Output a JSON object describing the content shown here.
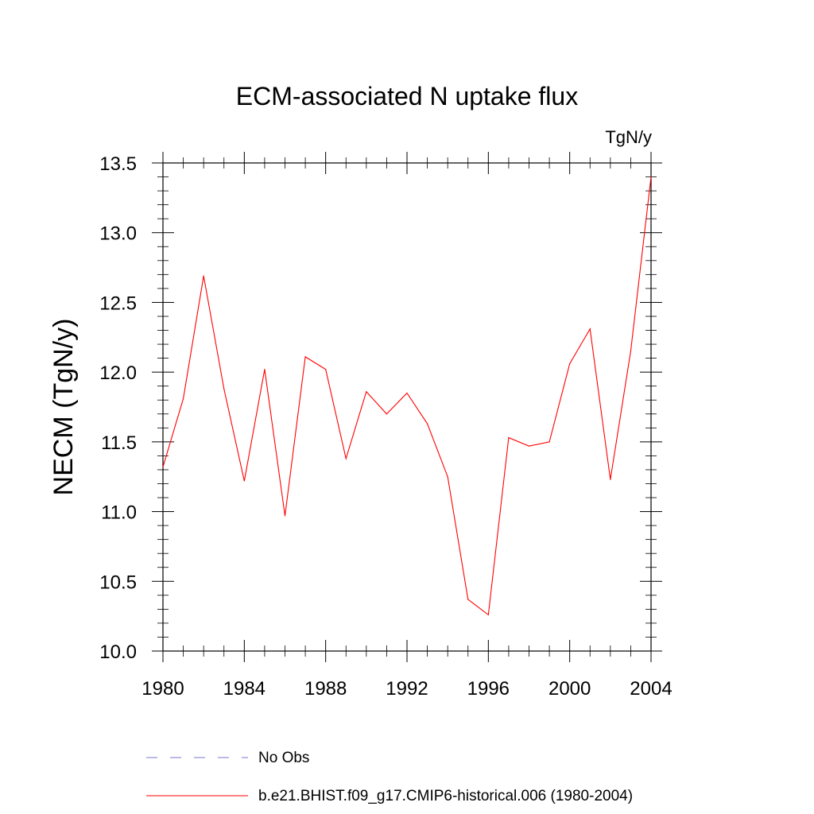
{
  "chart_data": {
    "type": "line",
    "title": "ECM-associated N uptake flux",
    "units_label": "TgN/y",
    "ylabel": "NECM  (TgN/y)",
    "xlabel": "",
    "xlim": [
      1980,
      2004
    ],
    "ylim": [
      10.0,
      13.5
    ],
    "x_ticks": [
      "1980",
      "1984",
      "1988",
      "1992",
      "1996",
      "2000",
      "2004"
    ],
    "y_ticks": [
      "10.0",
      "10.5",
      "11.0",
      "11.5",
      "12.0",
      "12.5",
      "13.0",
      "13.5"
    ],
    "grid": false,
    "legend_position": "bottom",
    "series": [
      {
        "name": "b.e21.BHIST.f09_g17.CMIP6-historical.006 (1980-2004)",
        "color": "#ff0000",
        "style": "solid",
        "x": [
          1980,
          1981,
          1982,
          1983,
          1984,
          1985,
          1986,
          1987,
          1988,
          1989,
          1990,
          1991,
          1992,
          1993,
          1994,
          1995,
          1996,
          1997,
          1998,
          1999,
          2000,
          2001,
          2002,
          2003,
          2004
        ],
        "values": [
          11.32,
          11.81,
          12.69,
          11.88,
          11.22,
          12.02,
          10.97,
          12.11,
          12.02,
          11.38,
          11.86,
          11.7,
          11.85,
          11.63,
          11.25,
          10.37,
          10.26,
          11.53,
          11.47,
          11.5,
          12.06,
          12.31,
          11.23,
          12.15,
          13.4
        ]
      }
    ],
    "legend": [
      {
        "label": "No Obs",
        "color": "#7777cc",
        "style": "dashed"
      },
      {
        "label": "b.e21.BHIST.f09_g17.CMIP6-historical.006 (1980-2004)",
        "color": "#ff0000",
        "style": "solid"
      }
    ]
  }
}
